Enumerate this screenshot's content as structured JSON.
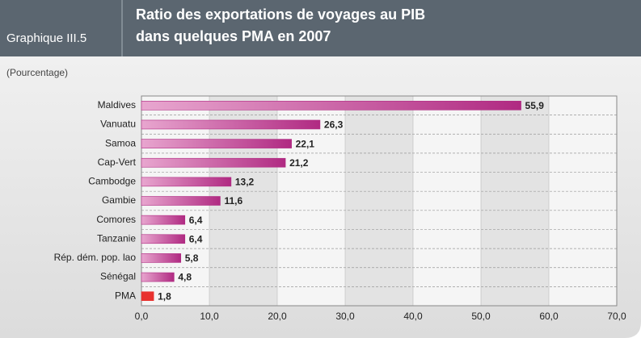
{
  "chart_data": {
    "type": "bar",
    "orientation": "horizontal",
    "label": "Graphique III.5",
    "title": "Ratio des exportations de voyages au PIB",
    "subtitle": "dans quelques PMA en 2007",
    "unit_note": "(Pourcentage)",
    "categories": [
      "Maldives",
      "Vanuatu",
      "Samoa",
      "Cap-Vert",
      "Cambodge",
      "Gambie",
      "Comores",
      "Tanzanie",
      "Rép. dém. pop. lao",
      "Sénégal",
      "PMA"
    ],
    "values": [
      55.9,
      26.3,
      22.1,
      21.2,
      13.2,
      11.6,
      6.4,
      6.4,
      5.8,
      4.8,
      1.8
    ],
    "value_labels": [
      "55,9",
      "26,3",
      "22,1",
      "21,2",
      "13,2",
      "11,6",
      "6,4",
      "6,4",
      "5,8",
      "4,8",
      "1,8"
    ],
    "colors": [
      "#b02a82",
      "#b02a82",
      "#b02a82",
      "#b02a82",
      "#b02a82",
      "#b02a82",
      "#b02a82",
      "#b02a82",
      "#b02a82",
      "#b02a82",
      "#e8322f"
    ],
    "xlim": [
      0,
      70
    ],
    "xticks": [
      {
        "value": 0,
        "label": "0,0"
      },
      {
        "value": 10,
        "label": "10,0"
      },
      {
        "value": 20,
        "label": "20,0"
      },
      {
        "value": 30,
        "label": "30,0"
      },
      {
        "value": 40,
        "label": "40,0"
      },
      {
        "value": 50,
        "label": "50,0"
      },
      {
        "value": 60,
        "label": "60,0"
      },
      {
        "value": 70,
        "label": "70,0"
      }
    ],
    "grid": true
  }
}
